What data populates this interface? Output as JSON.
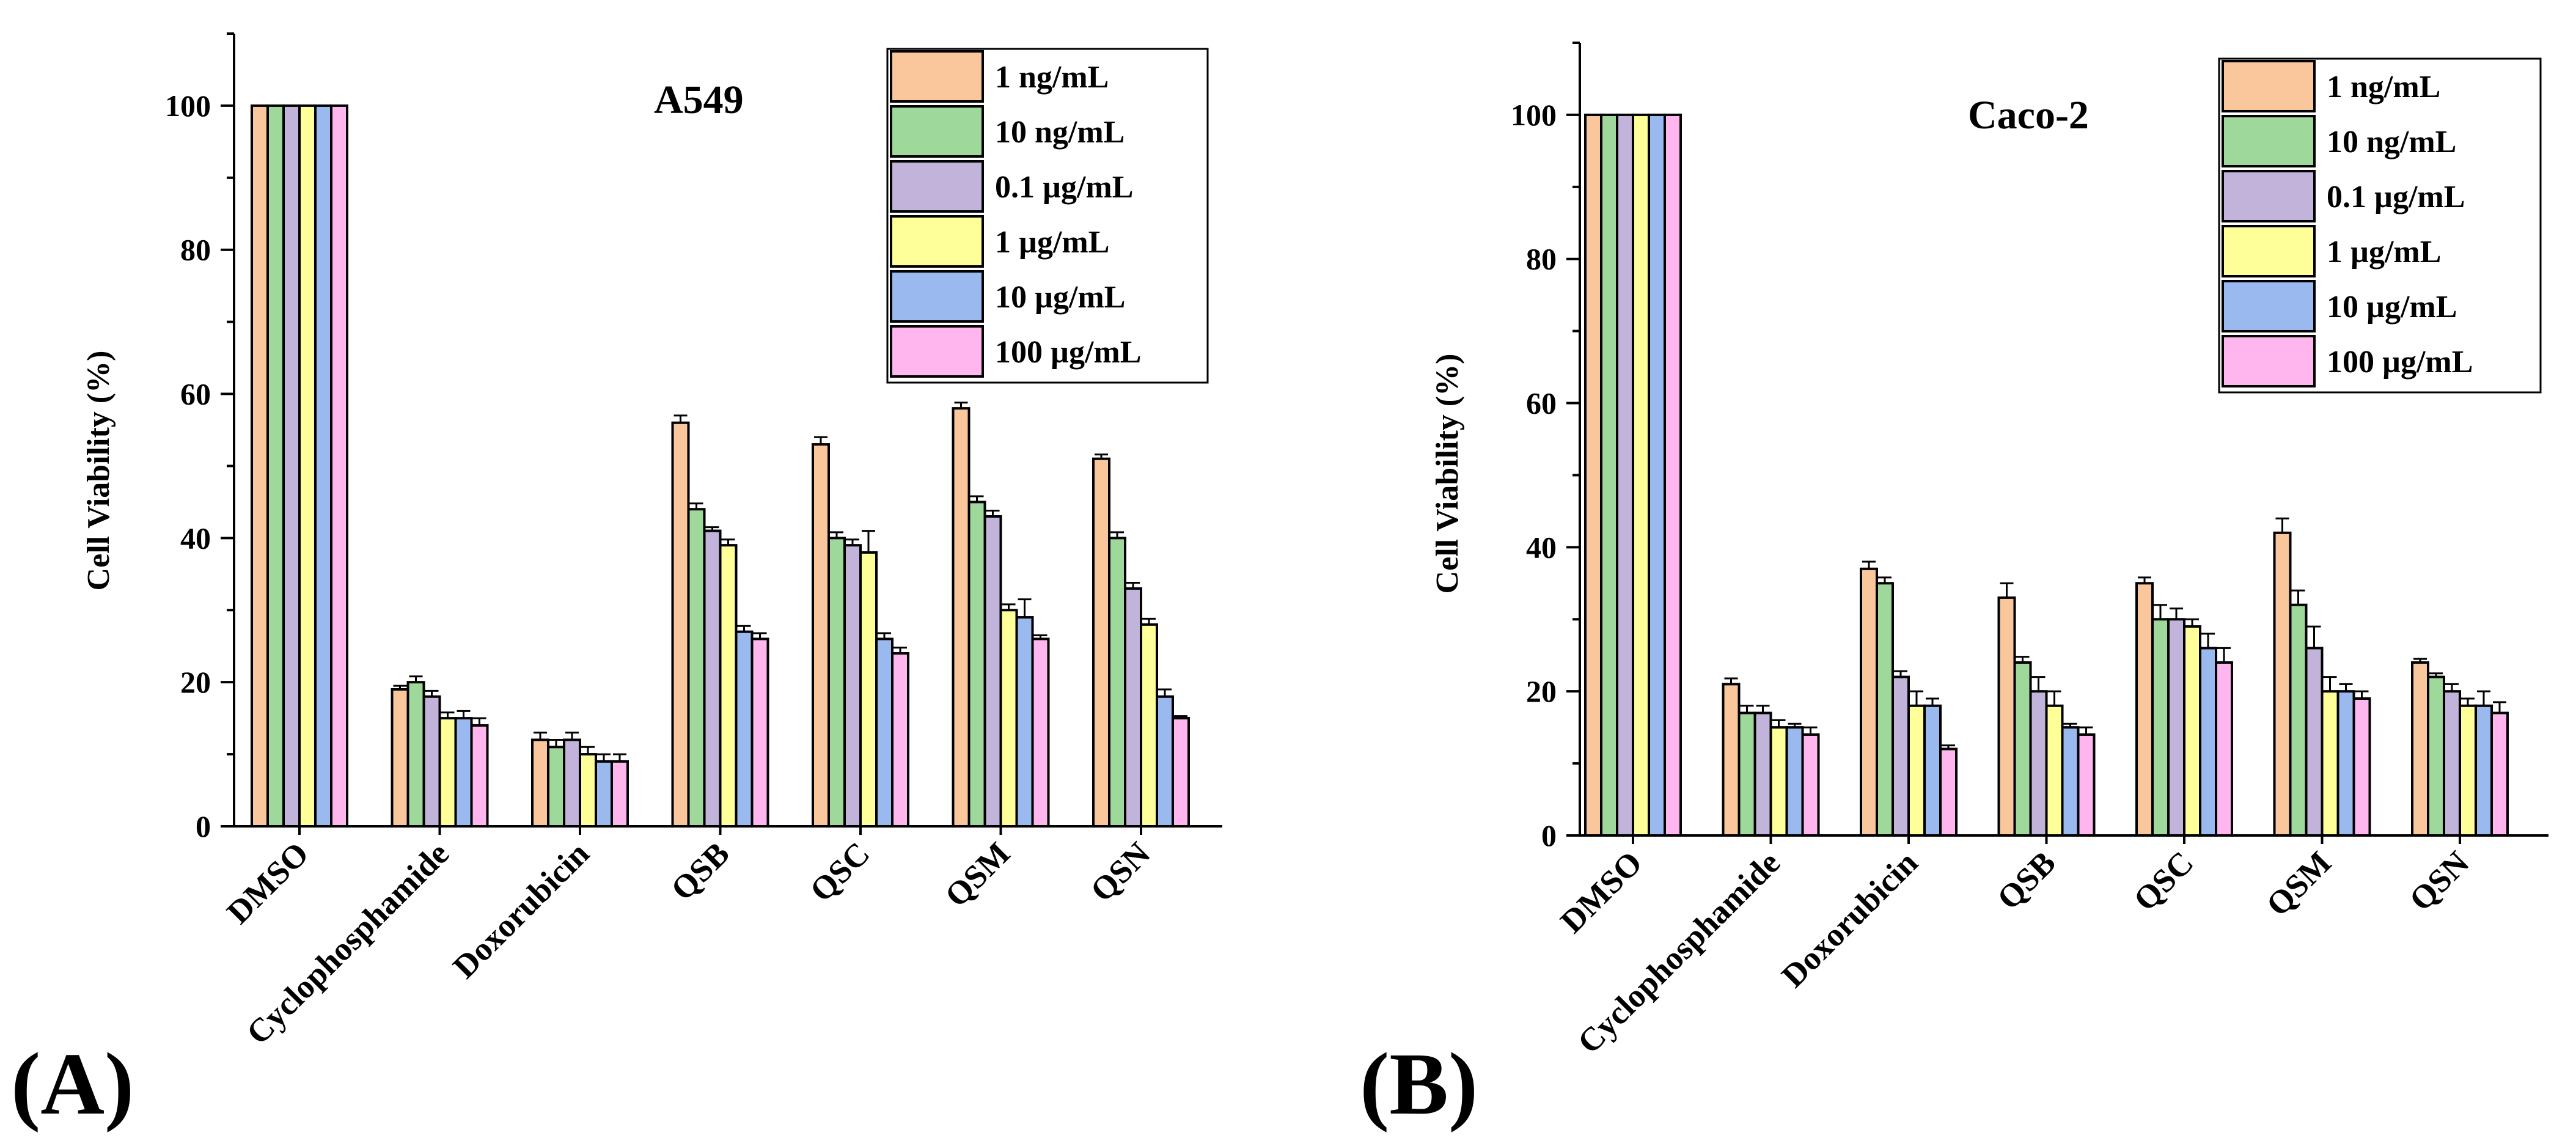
{
  "series_colors": [
    "#f9c79b",
    "#9ed99b",
    "#c1b3d9",
    "#ffff99",
    "#99b9ef",
    "#ffb5ee"
  ],
  "panels": [
    {
      "label": "(A)",
      "cell_line": "A549",
      "legend": [
        "1 ng/mL",
        "10 ng/mL",
        "0.1 µg/mL",
        "1 µg/mL",
        "10 µg/mL",
        "100 µg/mL"
      ]
    },
    {
      "label": "(B)",
      "cell_line": "Caco-2",
      "legend": [
        "1 ng/mL",
        "10 ng/mL",
        "0.1 µg/mL",
        "1 µg/mL",
        "10 µg/mL",
        "100 µg/mL"
      ]
    }
  ],
  "chart_data": [
    {
      "type": "bar",
      "title": "A549",
      "xlabel": "",
      "ylabel": "Cell Viability (%)",
      "ylim": [
        0,
        110
      ],
      "yticks": [
        0,
        20,
        40,
        60,
        80,
        100
      ],
      "legend_position": "top-right",
      "categories": [
        "DMSO",
        "Cyclophosphamide",
        "Doxorubicin",
        "QSB",
        "QSC",
        "QSM",
        "QSN"
      ],
      "series": [
        {
          "name": "1 ng/mL",
          "values": [
            100,
            19,
            12,
            56,
            53,
            58,
            51
          ],
          "errors": [
            0,
            0.5,
            1.0,
            1.0,
            1.0,
            0.8,
            0.6
          ]
        },
        {
          "name": "10 ng/mL",
          "values": [
            100,
            20,
            11,
            44,
            40,
            45,
            40
          ],
          "errors": [
            0,
            0.8,
            1.0,
            0.8,
            0.8,
            0.8,
            0.8
          ]
        },
        {
          "name": "0.1 µg/mL",
          "values": [
            100,
            18,
            12,
            41,
            39,
            43,
            33
          ],
          "errors": [
            0,
            0.8,
            1.0,
            0.5,
            0.8,
            0.8,
            0.8
          ]
        },
        {
          "name": "1 µg/mL",
          "values": [
            100,
            15,
            10,
            39,
            38,
            30,
            28
          ],
          "errors": [
            0,
            0.8,
            1.0,
            0.8,
            3.0,
            0.8,
            0.8
          ]
        },
        {
          "name": "10 µg/mL",
          "values": [
            100,
            15,
            9,
            27,
            26,
            29,
            18
          ],
          "errors": [
            0,
            1.0,
            1.0,
            0.8,
            0.8,
            2.5,
            1.0
          ]
        },
        {
          "name": "100 µg/mL",
          "values": [
            100,
            14,
            9,
            26,
            24,
            26,
            15
          ],
          "errors": [
            0,
            1.0,
            1.0,
            0.8,
            0.8,
            0.5,
            0.3
          ]
        }
      ]
    },
    {
      "type": "bar",
      "title": "Caco-2",
      "xlabel": "",
      "ylabel": "Cell Viability (%)",
      "ylim": [
        0,
        110
      ],
      "yticks": [
        0,
        20,
        40,
        60,
        80,
        100
      ],
      "legend_position": "top-right",
      "categories": [
        "DMSO",
        "Cyclophosphamide",
        "Doxorubicin",
        "QSB",
        "QSC",
        "QSM",
        "QSN"
      ],
      "series": [
        {
          "name": "1 ng/mL",
          "values": [
            100,
            21,
            37,
            33,
            35,
            42,
            24
          ],
          "errors": [
            0,
            0.8,
            1.0,
            2.0,
            0.8,
            2.0,
            0.5
          ]
        },
        {
          "name": "10 ng/mL",
          "values": [
            100,
            17,
            35,
            24,
            30,
            32,
            22
          ],
          "errors": [
            0,
            1.0,
            0.8,
            0.8,
            2.0,
            2.0,
            0.5
          ]
        },
        {
          "name": "0.1 µg/mL",
          "values": [
            100,
            17,
            22,
            20,
            30,
            26,
            20
          ],
          "errors": [
            0,
            1.0,
            0.8,
            2.0,
            1.5,
            3.0,
            1.0
          ]
        },
        {
          "name": "1 µg/mL",
          "values": [
            100,
            15,
            18,
            18,
            29,
            20,
            18
          ],
          "errors": [
            0,
            1.0,
            2.0,
            2.0,
            1.0,
            2.0,
            1.0
          ]
        },
        {
          "name": "10 µg/mL",
          "values": [
            100,
            15,
            18,
            15,
            26,
            20,
            18
          ],
          "errors": [
            0,
            0.5,
            1.0,
            0.5,
            2.0,
            1.0,
            2.0
          ]
        },
        {
          "name": "100 µg/mL",
          "values": [
            100,
            14,
            12,
            14,
            24,
            19,
            17
          ],
          "errors": [
            0,
            1.0,
            0.5,
            1.0,
            2.0,
            1.0,
            1.5
          ]
        }
      ]
    }
  ]
}
